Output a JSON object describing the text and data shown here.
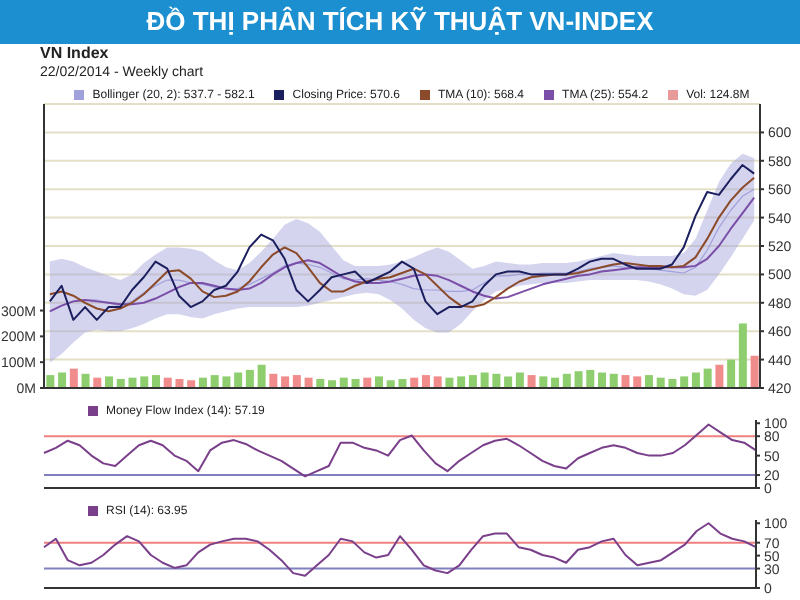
{
  "chart_data": [
    {
      "type": "line",
      "title": "ĐỒ THỊ PHÂN TÍCH KỸ THUẬT VN-INDEX",
      "subtitle": "VN Index",
      "annotations": [
        "22/02/2014 - Weekly chart"
      ],
      "categories": [
        null,
        null,
        null,
        null,
        null,
        null,
        null,
        null,
        null,
        null,
        null,
        null,
        null,
        null,
        null,
        null,
        null,
        null,
        null,
        null,
        null,
        null,
        null,
        null,
        null,
        null,
        null,
        null,
        null,
        null,
        null,
        null,
        null,
        null,
        null,
        null,
        null,
        null,
        null,
        null,
        null,
        null,
        null,
        null,
        null,
        null,
        null,
        null,
        null,
        null,
        null,
        null,
        null,
        null,
        null,
        null,
        null,
        null,
        null,
        null,
        null
      ],
      "ylim": [
        0,
        1100
      ],
      "yticks": [
        {
          "value": 0,
          "label": "0M"
        },
        {
          "value": 100,
          "label": "100M"
        },
        {
          "value": 200,
          "label": "200M"
        },
        {
          "value": 300,
          "label": "300M"
        }
      ],
      "y2lim": [
        420,
        620
      ],
      "y2ticks": [
        420,
        440,
        460,
        480,
        500,
        520,
        540,
        560,
        580,
        600
      ],
      "grid": "y",
      "legend": "top",
      "series": [
        {
          "name": "Bollinger (20, 2): 537.7 - 582.1",
          "type": "line",
          "axis": "y2",
          "color": "#a0a0dc",
          "values": [
            474,
            478,
            481,
            482,
            482,
            480,
            478,
            481,
            487,
            492,
            496,
            496,
            494,
            493,
            491,
            490,
            490,
            493,
            497,
            501,
            506,
            508,
            507,
            505,
            501,
            497,
            496,
            497,
            496,
            495,
            493,
            490,
            489,
            489,
            488,
            488,
            489,
            494,
            499,
            499,
            500,
            500,
            501,
            501,
            501,
            502,
            504,
            505,
            506,
            505,
            505,
            504,
            503,
            502,
            501,
            505,
            517,
            533,
            545,
            555,
            560
          ],
          "lower": [
            438,
            444,
            452,
            459,
            461,
            460,
            460,
            462,
            465,
            469,
            472,
            472,
            470,
            469,
            472,
            474,
            476,
            477,
            477,
            477,
            477,
            477,
            478,
            480,
            482,
            484,
            486,
            487,
            486,
            482,
            476,
            468,
            462,
            459,
            459,
            465,
            474,
            482,
            488,
            490,
            492,
            493,
            494,
            494,
            494,
            495,
            496,
            496,
            496,
            496,
            496,
            495,
            493,
            490,
            486,
            485,
            489,
            500,
            512,
            525,
            538
          ],
          "upper": [
            509,
            511,
            509,
            505,
            502,
            499,
            496,
            500,
            508,
            514,
            519,
            519,
            518,
            516,
            510,
            505,
            503,
            508,
            516,
            525,
            535,
            539,
            536,
            530,
            520,
            510,
            506,
            506,
            506,
            507,
            509,
            512,
            516,
            519,
            516,
            510,
            504,
            506,
            509,
            508,
            507,
            507,
            508,
            508,
            508,
            509,
            511,
            513,
            515,
            514,
            513,
            513,
            513,
            513,
            515,
            525,
            545,
            565,
            578,
            585,
            582
          ]
        },
        {
          "name": "Vol: 124.8M",
          "type": "bar",
          "color": "#e89a9a",
          "values": [
            50,
            60,
            75,
            55,
            40,
            45,
            35,
            40,
            45,
            50,
            40,
            35,
            30,
            40,
            50,
            45,
            60,
            70,
            90,
            55,
            45,
            50,
            40,
            35,
            30,
            40,
            35,
            40,
            45,
            30,
            35,
            40,
            50,
            45,
            40,
            45,
            50,
            60,
            55,
            45,
            60,
            50,
            45,
            40,
            55,
            65,
            70,
            60,
            55,
            50,
            45,
            50,
            40,
            35,
            45,
            60,
            75,
            90,
            110,
            250,
            125
          ],
          "colors": [
            "#8fce6f",
            "#8fce6f",
            "#f08c8c",
            "#8fce6f",
            "#f08c8c",
            "#8fce6f",
            "#8fce6f",
            "#8fce6f",
            "#8fce6f",
            "#8fce6f",
            "#f08c8c",
            "#f08c8c",
            "#f08c8c",
            "#8fce6f",
            "#8fce6f",
            "#8fce6f",
            "#8fce6f",
            "#8fce6f",
            "#8fce6f",
            "#f08c8c",
            "#f08c8c",
            "#f08c8c",
            "#f08c8c",
            "#8fce6f",
            "#8fce6f",
            "#8fce6f",
            "#8fce6f",
            "#f08c8c",
            "#8fce6f",
            "#8fce6f",
            "#8fce6f",
            "#f08c8c",
            "#f08c8c",
            "#f08c8c",
            "#8fce6f",
            "#8fce6f",
            "#8fce6f",
            "#8fce6f",
            "#8fce6f",
            "#8fce6f",
            "#8fce6f",
            "#f08c8c",
            "#8fce6f",
            "#8fce6f",
            "#8fce6f",
            "#8fce6f",
            "#8fce6f",
            "#8fce6f",
            "#8fce6f",
            "#f08c8c",
            "#f08c8c",
            "#8fce6f",
            "#8fce6f",
            "#8fce6f",
            "#8fce6f",
            "#8fce6f",
            "#8fce6f",
            "#f08c8c",
            "#8fce6f",
            "#8fce6f",
            "#f08c8c"
          ]
        },
        {
          "name": "TMA (25): 554.2",
          "type": "line",
          "axis": "y2",
          "color": "#7b4fa8",
          "values": [
            474,
            478,
            481,
            482,
            481,
            480,
            479,
            479,
            480,
            483,
            487,
            491,
            494,
            494,
            492,
            490,
            489,
            490,
            494,
            500,
            505,
            508,
            510,
            508,
            503,
            498,
            495,
            494,
            494,
            495,
            497,
            499,
            500,
            499,
            496,
            492,
            488,
            485,
            483,
            484,
            487,
            490,
            493,
            495,
            497,
            499,
            500,
            502,
            503,
            504,
            505,
            505,
            505,
            505,
            505,
            506,
            511,
            520,
            532,
            543,
            554
          ]
        },
        {
          "name": "TMA (10): 568.4",
          "type": "line",
          "axis": "y2",
          "color": "#8b4a2a",
          "values": [
            486,
            488,
            485,
            480,
            476,
            474,
            476,
            480,
            486,
            494,
            502,
            503,
            497,
            488,
            484,
            485,
            488,
            495,
            505,
            514,
            519,
            515,
            505,
            494,
            488,
            488,
            492,
            495,
            497,
            498,
            501,
            504,
            500,
            492,
            484,
            478,
            477,
            479,
            484,
            490,
            495,
            498,
            499,
            500,
            500,
            501,
            503,
            505,
            507,
            508,
            507,
            506,
            506,
            505,
            506,
            512,
            525,
            540,
            552,
            561,
            568
          ]
        },
        {
          "name": "Closing Price: 570.6",
          "type": "line",
          "axis": "y2",
          "color": "#1c1f5e",
          "values": [
            481,
            492,
            468,
            477,
            468,
            477,
            477,
            489,
            498,
            509,
            504,
            485,
            477,
            481,
            489,
            492,
            502,
            519,
            528,
            524,
            511,
            489,
            481,
            489,
            498,
            500,
            502,
            494,
            498,
            502,
            509,
            504,
            481,
            472,
            477,
            477,
            481,
            492,
            500,
            502,
            502,
            500,
            500,
            500,
            500,
            504,
            509,
            511,
            511,
            507,
            504,
            504,
            504,
            507,
            519,
            541,
            558,
            556,
            567,
            577,
            571
          ]
        }
      ]
    },
    {
      "type": "line",
      "categories": [
        null,
        null,
        null,
        null,
        null,
        null,
        null,
        null,
        null,
        null,
        null,
        null,
        null,
        null,
        null,
        null,
        null,
        null,
        null,
        null,
        null,
        null,
        null,
        null,
        null,
        null,
        null,
        null,
        null,
        null,
        null,
        null,
        null,
        null,
        null,
        null,
        null,
        null,
        null,
        null,
        null,
        null,
        null,
        null,
        null,
        null,
        null,
        null,
        null,
        null,
        null,
        null,
        null,
        null,
        null,
        null,
        null,
        null,
        null,
        null,
        null
      ],
      "ylim": [
        0,
        105
      ],
      "yticks": [
        0,
        20,
        50,
        80,
        100
      ],
      "legend": "top left",
      "ref_lines": [
        {
          "axis": "y",
          "value": 80,
          "color": "#f08080"
        },
        {
          "axis": "y",
          "value": 20,
          "color": "#8080c0"
        }
      ],
      "series": [
        {
          "name": "Money Flow Index (14): 57.19",
          "color": "#7a3f8a",
          "values": [
            54,
            62,
            73,
            66,
            50,
            38,
            34,
            50,
            66,
            73,
            66,
            50,
            42,
            26,
            58,
            70,
            74,
            68,
            58,
            50,
            42,
            30,
            18,
            26,
            34,
            70,
            70,
            62,
            58,
            50,
            74,
            81,
            58,
            38,
            26,
            42,
            54,
            66,
            73,
            76,
            66,
            54,
            42,
            34,
            30,
            46,
            54,
            62,
            66,
            62,
            54,
            50,
            50,
            54,
            66,
            82,
            98,
            86,
            74,
            70,
            58
          ]
        }
      ]
    },
    {
      "type": "line",
      "categories": [
        null,
        null,
        null,
        null,
        null,
        null,
        null,
        null,
        null,
        null,
        null,
        null,
        null,
        null,
        null,
        null,
        null,
        null,
        null,
        null,
        null,
        null,
        null,
        null,
        null,
        null,
        null,
        null,
        null,
        null,
        null,
        null,
        null,
        null,
        null,
        null,
        null,
        null,
        null,
        null,
        null,
        null,
        null,
        null,
        null,
        null,
        null,
        null,
        null,
        null,
        null,
        null,
        null,
        null,
        null,
        null,
        null,
        null,
        null,
        null,
        null
      ],
      "ylim": [
        0,
        105
      ],
      "yticks": [
        0,
        30,
        50,
        70,
        100
      ],
      "legend": "top left",
      "ref_lines": [
        {
          "axis": "y",
          "value": 70,
          "color": "#f08080"
        },
        {
          "axis": "y",
          "value": 30,
          "color": "#8080c0"
        }
      ],
      "series": [
        {
          "name": "RSI (14): 63.95",
          "color": "#7a3f8a",
          "values": [
            63,
            76,
            43,
            35,
            39,
            51,
            67,
            80,
            72,
            51,
            39,
            31,
            35,
            55,
            67,
            72,
            76,
            76,
            72,
            59,
            43,
            23,
            19,
            35,
            51,
            76,
            72,
            55,
            47,
            51,
            80,
            59,
            35,
            27,
            23,
            35,
            59,
            80,
            84,
            84,
            63,
            59,
            51,
            47,
            39,
            59,
            63,
            72,
            76,
            51,
            35,
            39,
            43,
            55,
            67,
            88,
            100,
            84,
            76,
            72,
            63
          ]
        }
      ]
    }
  ]
}
